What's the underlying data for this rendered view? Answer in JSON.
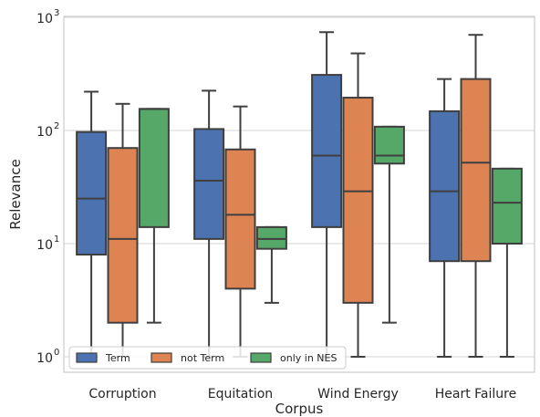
{
  "chart_data": {
    "type": "boxplot",
    "title": "",
    "xlabel": "Corpus",
    "ylabel": "Relevance",
    "yscale": "log",
    "ylim": [
      1,
      1000
    ],
    "y_ticks": [
      1,
      10,
      100,
      1000
    ],
    "y_tick_labels": [
      {
        "base": "10",
        "exp": "0"
      },
      {
        "base": "10",
        "exp": "1"
      },
      {
        "base": "10",
        "exp": "2"
      },
      {
        "base": "10",
        "exp": "3"
      }
    ],
    "grid": "horizontal",
    "legend_position": "bottom-left",
    "categories": [
      "Corruption",
      "Equitation",
      "Wind Energy",
      "Heart Failure"
    ],
    "series": [
      {
        "name": "Term",
        "color": "#4c72b0",
        "boxes": [
          {
            "whisker_low": 1,
            "q1": 8,
            "median": 25,
            "q3": 97,
            "whisker_high": 220
          },
          {
            "whisker_low": 1,
            "q1": 11,
            "median": 36,
            "q3": 103,
            "whisker_high": 225
          },
          {
            "whisker_low": 1,
            "q1": 14,
            "median": 60,
            "q3": 310,
            "whisker_high": 740
          },
          {
            "whisker_low": 1,
            "q1": 7,
            "median": 29,
            "q3": 148,
            "whisker_high": 285
          }
        ]
      },
      {
        "name": "not Term",
        "color": "#dd8452",
        "boxes": [
          {
            "whisker_low": 1,
            "q1": 2,
            "median": 11,
            "q3": 70,
            "whisker_high": 172
          },
          {
            "whisker_low": 1,
            "q1": 4,
            "median": 18,
            "q3": 68,
            "whisker_high": 163
          },
          {
            "whisker_low": 1,
            "q1": 3,
            "median": 29,
            "q3": 195,
            "whisker_high": 480
          },
          {
            "whisker_low": 1,
            "q1": 7,
            "median": 52,
            "q3": 285,
            "whisker_high": 700
          }
        ]
      },
      {
        "name": "only in NES",
        "color": "#55a868",
        "boxes": [
          {
            "whisker_low": 2,
            "q1": 14,
            "median": 155,
            "q3": 155,
            "whisker_high": 155
          },
          {
            "whisker_low": 3,
            "q1": 9,
            "median": 11,
            "q3": 14,
            "whisker_high": 14
          },
          {
            "whisker_low": 2,
            "q1": 51,
            "median": 60,
            "q3": 108,
            "whisker_high": 108
          },
          {
            "whisker_low": 1,
            "q1": 10,
            "median": 23,
            "q3": 46,
            "whisker_high": 46
          }
        ]
      }
    ]
  }
}
